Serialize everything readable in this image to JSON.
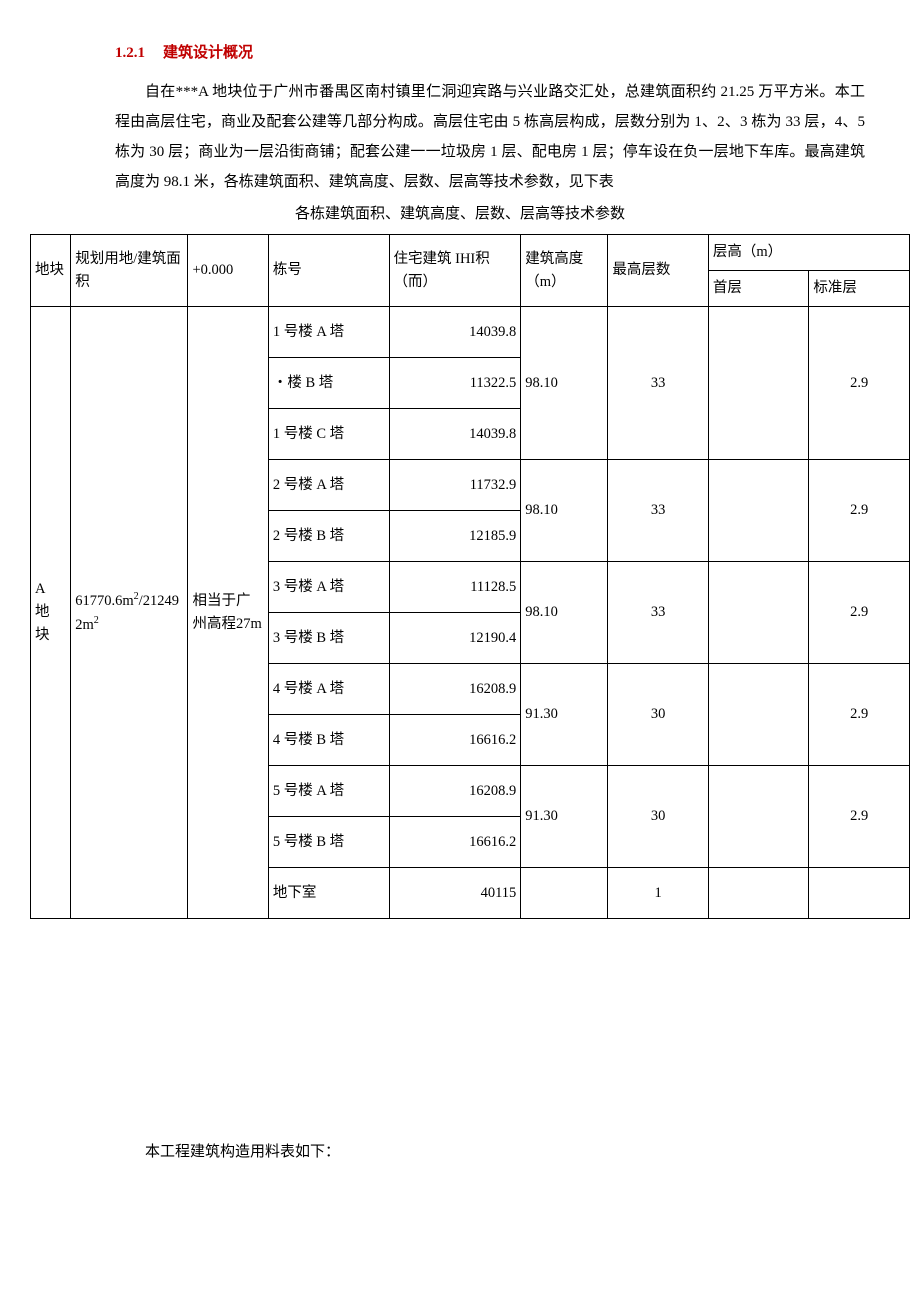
{
  "section": {
    "number": "1.2.1",
    "title": "建筑设计概况"
  },
  "paragraph": "自在***A 地块位于广州市番禺区南村镇里仁洞迎宾路与兴业路交汇处，总建筑面积约 21.25 万平方米。本工程由高层住宅，商业及配套公建等几部分构成。高层住宅由 5 栋高层构成，层数分别为 1、2、3 栋为 33 层，4、5 栋为 30 层；商业为一层沿街商铺；配套公建一一垃圾房 1 层、配电房 1 层；停车设在负一层地下车库。最高建筑高度为 98.1 米，各栋建筑面积、建筑高度、层数、层高等技术参数，见下表",
  "table_caption": "各栋建筑面积、建筑高度、层数、层高等技术参数",
  "headers": {
    "c1": "地块",
    "c2": "规划用地/建筑面积",
    "c3": "+0.000",
    "c4": "栋号",
    "c5": "住宅建筑 IHI积（而）",
    "c6": "建筑高度（m）",
    "c7": "最高层数",
    "cH": "层高（m）",
    "c8": "首层",
    "c9": "标准层"
  },
  "block": {
    "name": "A地块",
    "area_html": "61770.6m<sup>2</sup>/212492m<sup>2</sup>",
    "level_ref": "相当于广州高程27m"
  },
  "groups": [
    {
      "height": "98.10",
      "floors": "33",
      "first": "",
      "std": "2.9",
      "rows": [
        {
          "bld": "1 号楼 A 塔",
          "area": "14039.8"
        },
        {
          "bld": "・楼 B 塔",
          "area": "11322.5"
        },
        {
          "bld": "1 号楼 C 塔",
          "area": "14039.8"
        }
      ]
    },
    {
      "height": "98.10",
      "floors": "33",
      "first": "",
      "std": "2.9",
      "rows": [
        {
          "bld": "2 号楼 A 塔",
          "area": "11732.9"
        },
        {
          "bld": "2 号楼 B 塔",
          "area": "12185.9"
        }
      ]
    },
    {
      "height": "98.10",
      "floors": "33",
      "first": "",
      "std": "2.9",
      "rows": [
        {
          "bld": "3 号楼 A 塔",
          "area": "11128.5"
        },
        {
          "bld": "3 号楼 B 塔",
          "area": "12190.4"
        }
      ]
    },
    {
      "height": "91.30",
      "floors": "30",
      "first": "",
      "std": "2.9",
      "rows": [
        {
          "bld": "4 号楼 A 塔",
          "area": "16208.9"
        },
        {
          "bld": "4 号楼 B 塔",
          "area": "16616.2"
        }
      ]
    },
    {
      "height": "91.30",
      "floors": "30",
      "first": "",
      "std": "2.9",
      "rows": [
        {
          "bld": "5 号楼 A 塔",
          "area": "16208.9"
        },
        {
          "bld": "5 号楼 B 塔",
          "area": "16616.2"
        }
      ]
    }
  ],
  "basement": {
    "bld": "地下室",
    "area": "40115",
    "floors": "1"
  },
  "para2": "本工程建筑构造用料表如下："
}
